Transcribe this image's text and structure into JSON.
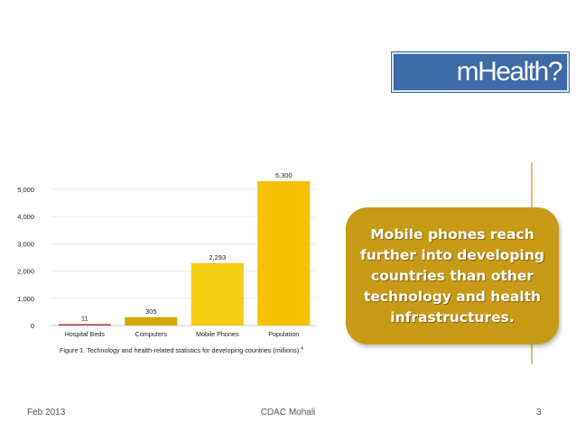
{
  "slide": {
    "title": "mHealth?",
    "callout": "Mobile phones reach further into developing countries than other technology and health infrastructures.",
    "footer_left": "Feb 2013",
    "footer_center": "CDAC Mohali",
    "footer_right": "3"
  },
  "colors": {
    "title_bg": "#3e6aa8",
    "callout_bg": "#c89b17",
    "bar_light": "#f2cc12",
    "bar_mid": "#f5c200",
    "bar_dark": "#d4a800",
    "bar_red": "#b8362a"
  },
  "chart_data": {
    "type": "bar",
    "categories": [
      "Hospital Beds",
      "Computers",
      "Mobile Phones",
      "Population"
    ],
    "values": [
      11,
      305,
      2293,
      5300
    ],
    "value_labels": [
      "11",
      "305",
      "2,293",
      "5,300"
    ],
    "yticks": [
      0,
      1000,
      2000,
      3000,
      4000,
      5000
    ],
    "ytick_labels": [
      "0",
      "1,000",
      "2,000",
      "3,000",
      "4,000",
      "5,000"
    ],
    "ylim": [
      0,
      5500
    ],
    "caption": "Figure 1. Technology and health-related statistics for developing countries (millions).",
    "caption_note": "4",
    "grid": true
  }
}
